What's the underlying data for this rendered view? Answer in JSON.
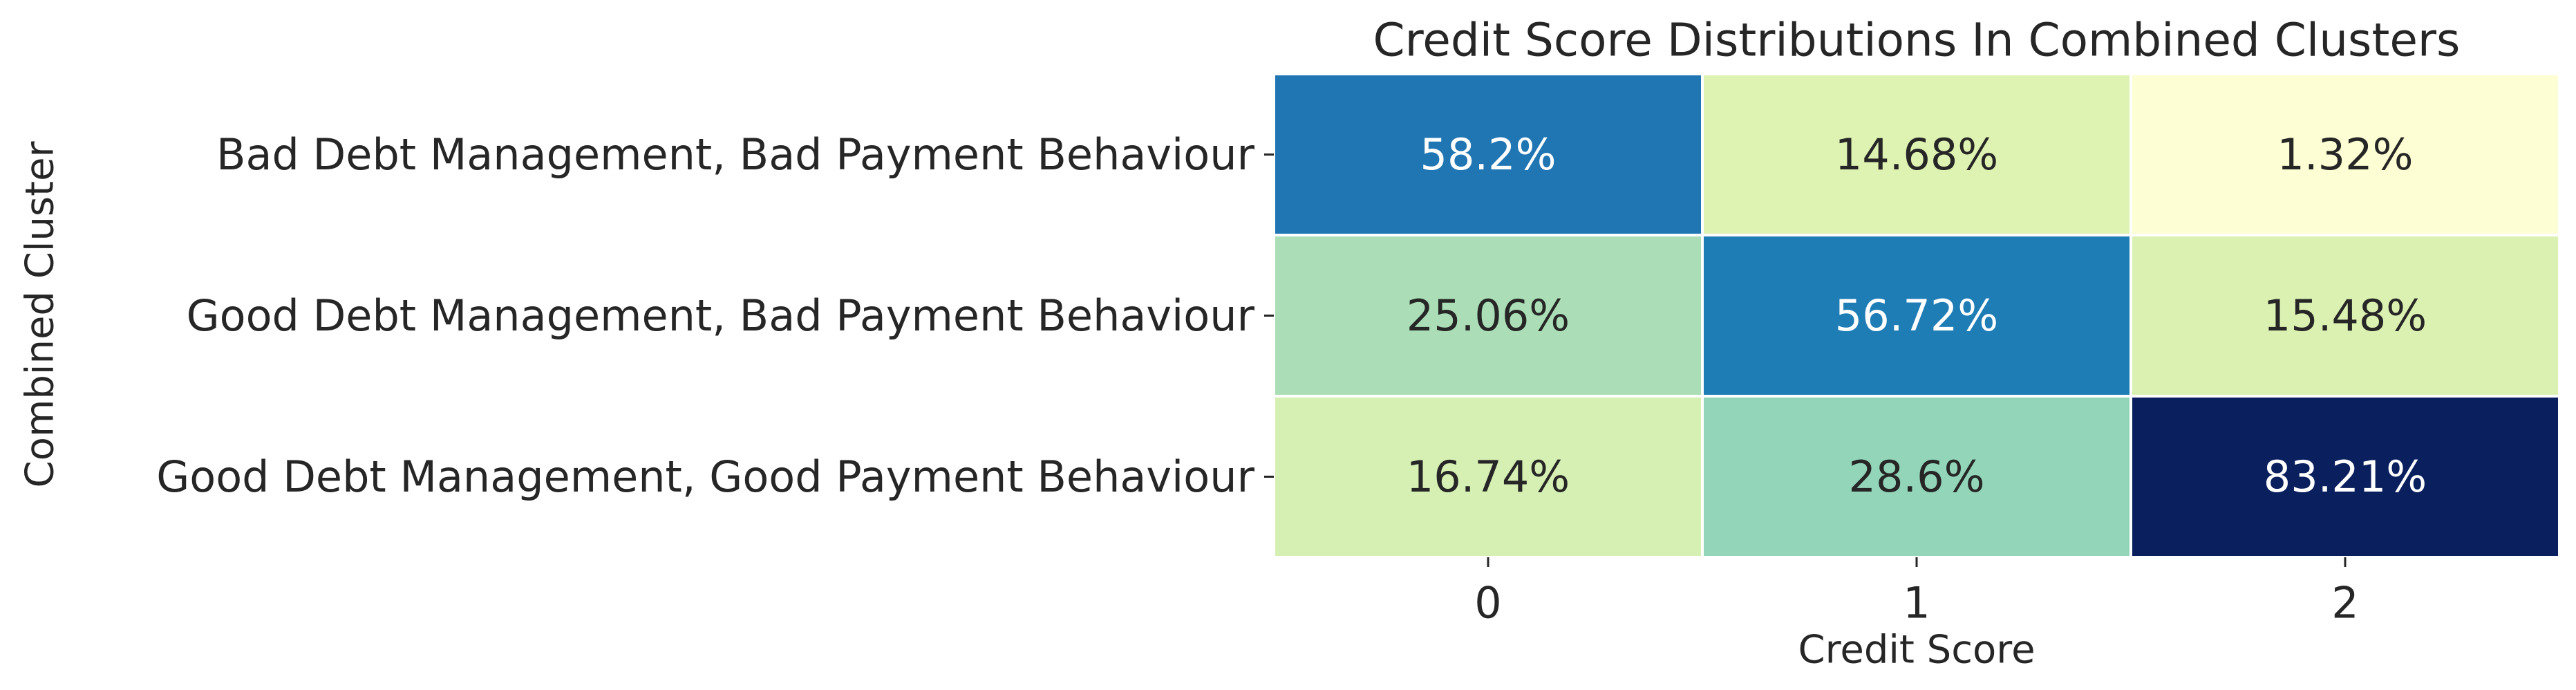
{
  "chart_data": {
    "type": "heatmap",
    "title": "Credit Score Distributions In Combined Clusters",
    "xlabel": "Credit Score",
    "ylabel": "Combined Cluster",
    "x_categories": [
      "0",
      "1",
      "2"
    ],
    "y_categories": [
      "Bad Debt Management, Bad Payment Behaviour",
      "Good Debt Management, Bad Payment Behaviour",
      "Good Debt Management, Good Payment Behaviour"
    ],
    "values": [
      [
        58.2,
        14.68,
        1.32
      ],
      [
        25.06,
        56.72,
        15.48
      ],
      [
        16.74,
        28.6,
        83.21
      ]
    ],
    "cell_labels": [
      [
        "58.2%",
        "14.68%",
        "1.32%"
      ],
      [
        "25.06%",
        "56.72%",
        "15.48%"
      ],
      [
        "16.74%",
        "28.6%",
        "83.21%"
      ]
    ],
    "colormap": "YlGnBu",
    "color_range": [
      0,
      84
    ],
    "colorbar": false,
    "grid": false
  }
}
